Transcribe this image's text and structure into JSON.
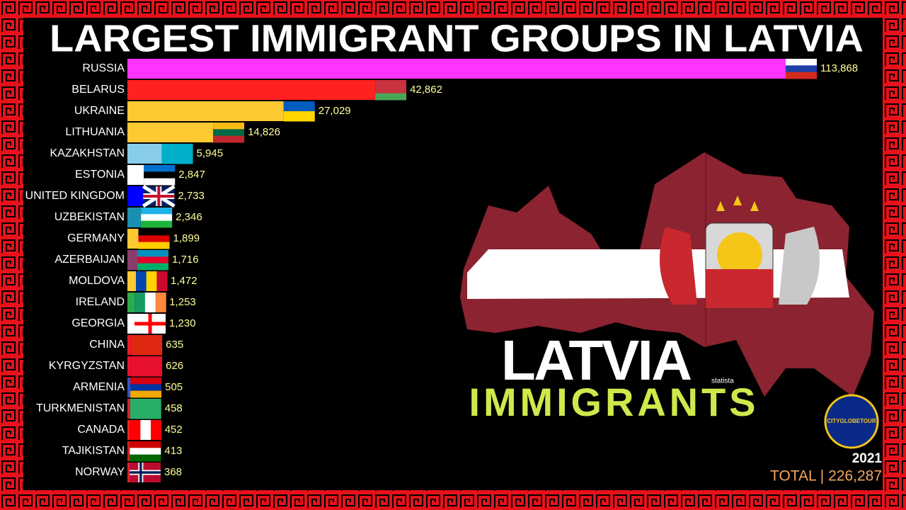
{
  "chart_data": {
    "type": "bar",
    "orientation": "horizontal",
    "title": "LARGEST IMMIGRANT GROUPS IN LATVIA",
    "categories": [
      "RUSSIA",
      "BELARUS",
      "UKRAINE",
      "LITHUANIA",
      "KAZAKHSTAN",
      "ESTONIA",
      "UNITED KINGDOM",
      "UZBEKISTAN",
      "GERMANY",
      "AZERBAIJAN",
      "MOLDOVA",
      "IRELAND",
      "GEORGIA",
      "CHINA",
      "KYRGYZSTAN",
      "ARMENIA",
      "TURKMENISTAN",
      "CANADA",
      "TAJIKISTAN",
      "NORWAY"
    ],
    "values": [
      113868,
      42862,
      27029,
      14826,
      5945,
      2847,
      2733,
      2346,
      1899,
      1716,
      1472,
      1253,
      1230,
      635,
      626,
      505,
      458,
      452,
      413,
      368
    ],
    "value_labels": [
      "113,868",
      "42,862",
      "27,029",
      "14,826",
      "5,945",
      "2,847",
      "2,733",
      "2,346",
      "1,899",
      "1,716",
      "1,472",
      "1,253",
      "1,230",
      "635",
      "626",
      "505",
      "458",
      "452",
      "413",
      "368"
    ],
    "colors": [
      "#ff33ff",
      "#ff2020",
      "#ffc933",
      "#ffc933",
      "#87cdea",
      "#ffffff",
      "#0000ff",
      "#1b8fb0",
      "#ffc933",
      "#8a3d6c",
      "#ffc933",
      "#2eab4a",
      "#ffffff",
      "#ee1c25",
      "#e8112d",
      "#3355cc",
      "#d81f26",
      "#ee2222",
      "#cc2222",
      "#d8232e"
    ],
    "map_title": "LATVIA",
    "map_subtitle": "IMMIGRANTS",
    "source": "statista",
    "logo": "CITYGLOBETOUR",
    "year": "2021",
    "total": "TOTAL | 226,287"
  }
}
